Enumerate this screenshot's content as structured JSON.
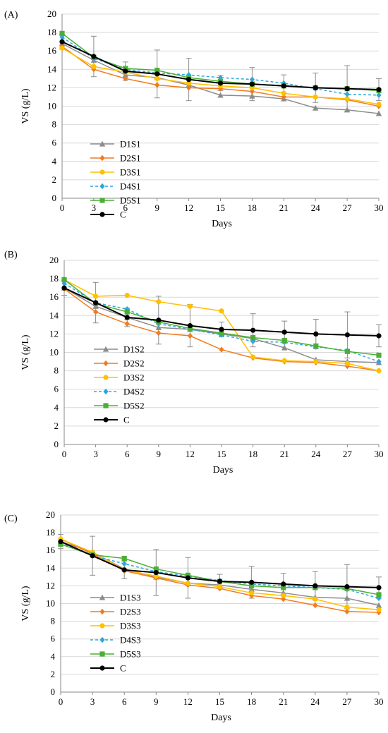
{
  "chart_data": [
    {
      "type": "line",
      "panel_label": "(A)",
      "xlabel": "Days",
      "ylabel": "VS  (g/L)",
      "x": [
        0,
        3,
        6,
        9,
        12,
        15,
        18,
        21,
        24,
        27,
        30
      ],
      "xlim": [
        0,
        30
      ],
      "ylim": [
        0,
        20
      ],
      "yticks": [
        0,
        2,
        4,
        6,
        8,
        10,
        12,
        14,
        16,
        18,
        20
      ],
      "legend_position": "lower-left",
      "series": [
        {
          "name": "D1S1",
          "color": "#8c8c8c",
          "marker": "triangle",
          "dash": "solid",
          "values": [
            16.8,
            15.0,
            13.4,
            13.1,
            12.3,
            11.2,
            11.1,
            10.8,
            9.8,
            9.6,
            9.2
          ]
        },
        {
          "name": "D2S1",
          "color": "#f07c22",
          "marker": "diamond",
          "dash": "solid",
          "values": [
            16.5,
            14.0,
            13.0,
            12.3,
            12.0,
            11.9,
            11.6,
            11.0,
            11.0,
            10.7,
            10.0
          ]
        },
        {
          "name": "D3S1",
          "color": "#ffc000",
          "marker": "circle",
          "dash": "solid",
          "values": [
            16.3,
            14.3,
            13.7,
            13.0,
            12.5,
            12.2,
            12.0,
            11.4,
            11.0,
            10.8,
            10.2
          ]
        },
        {
          "name": "D4S1",
          "color": "#2ea6e0",
          "marker": "diamond",
          "dash": "dashed",
          "values": [
            17.5,
            15.2,
            14.0,
            13.6,
            13.4,
            13.1,
            12.9,
            12.5,
            11.9,
            11.3,
            11.2
          ]
        },
        {
          "name": "D5S1",
          "color": "#4caf34",
          "marker": "square",
          "dash": "solid",
          "values": [
            17.9,
            15.3,
            14.1,
            13.9,
            13.1,
            12.7,
            12.4,
            12.2,
            12.0,
            11.9,
            11.7
          ]
        },
        {
          "name": "C",
          "color": "#000000",
          "marker": "circle",
          "dash": "solid",
          "values": [
            17.0,
            15.4,
            13.8,
            13.5,
            12.9,
            12.5,
            12.4,
            12.2,
            12.0,
            11.9,
            11.8
          ]
        }
      ],
      "error_bars": {
        "on": "C",
        "values": [
          0.8,
          2.2,
          1.0,
          2.6,
          2.3,
          0.8,
          1.8,
          1.2,
          1.6,
          2.5,
          1.2
        ]
      }
    },
    {
      "type": "line",
      "panel_label": "(B)",
      "xlabel": "Days",
      "ylabel": "VS  (g/L)",
      "x": [
        0,
        3,
        6,
        9,
        12,
        15,
        18,
        21,
        24,
        27,
        30
      ],
      "xlim": [
        0,
        30
      ],
      "ylim": [
        0,
        20
      ],
      "yticks": [
        0,
        2,
        4,
        6,
        8,
        10,
        12,
        14,
        16,
        18,
        20
      ],
      "legend_position": "lower-left",
      "series": [
        {
          "name": "D1S2",
          "color": "#8c8c8c",
          "marker": "triangle",
          "dash": "solid",
          "values": [
            17.0,
            15.0,
            13.8,
            12.7,
            12.5,
            12.0,
            11.5,
            10.5,
            9.2,
            9.0,
            8.9
          ]
        },
        {
          "name": "D2S2",
          "color": "#f07c22",
          "marker": "diamond",
          "dash": "solid",
          "values": [
            16.9,
            14.4,
            13.1,
            12.1,
            11.8,
            10.3,
            9.4,
            9.0,
            8.9,
            8.5,
            8.0
          ]
        },
        {
          "name": "D3S2",
          "color": "#ffc000",
          "marker": "circle",
          "dash": "solid",
          "values": [
            17.9,
            16.1,
            16.2,
            15.5,
            15.0,
            14.5,
            9.5,
            9.1,
            9.0,
            8.8,
            8.0
          ]
        },
        {
          "name": "D4S2",
          "color": "#2ea6e0",
          "marker": "diamond",
          "dash": "dashed",
          "values": [
            17.5,
            15.4,
            14.7,
            13.1,
            12.5,
            11.9,
            11.2,
            11.1,
            10.6,
            10.2,
            9.0
          ]
        },
        {
          "name": "D5S2",
          "color": "#4caf34",
          "marker": "square",
          "dash": "solid",
          "values": [
            17.9,
            15.3,
            14.4,
            13.3,
            12.6,
            12.1,
            11.6,
            11.3,
            10.7,
            10.1,
            9.7
          ]
        },
        {
          "name": "C",
          "color": "#000000",
          "marker": "circle",
          "dash": "solid",
          "values": [
            17.0,
            15.4,
            13.8,
            13.5,
            12.9,
            12.5,
            12.4,
            12.2,
            12.0,
            11.9,
            11.8
          ]
        }
      ],
      "error_bars": {
        "on": "C",
        "values": [
          0.8,
          2.2,
          1.0,
          2.6,
          2.3,
          0.8,
          1.8,
          1.2,
          1.6,
          2.5,
          1.2
        ]
      }
    },
    {
      "type": "line",
      "panel_label": "(C)",
      "xlabel": "Days",
      "ylabel": "VS  (g/L)",
      "x": [
        0,
        3,
        6,
        9,
        12,
        15,
        18,
        21,
        24,
        27,
        30
      ],
      "xlim": [
        0,
        30
      ],
      "ylim": [
        0,
        20
      ],
      "yticks": [
        0,
        2,
        4,
        6,
        8,
        10,
        12,
        14,
        16,
        18,
        20
      ],
      "legend_position": "lower-left",
      "series": [
        {
          "name": "D1S3",
          "color": "#8c8c8c",
          "marker": "triangle",
          "dash": "solid",
          "values": [
            17.0,
            15.8,
            13.9,
            13.0,
            12.3,
            12.1,
            11.6,
            11.2,
            10.7,
            10.6,
            9.8
          ]
        },
        {
          "name": "D2S3",
          "color": "#f07c22",
          "marker": "diamond",
          "dash": "solid",
          "values": [
            17.3,
            15.6,
            13.7,
            12.9,
            12.1,
            11.7,
            10.9,
            10.5,
            9.8,
            9.1,
            9.0
          ]
        },
        {
          "name": "D3S3",
          "color": "#ffc000",
          "marker": "circle",
          "dash": "solid",
          "values": [
            17.3,
            15.8,
            13.8,
            13.1,
            12.3,
            11.9,
            11.2,
            10.9,
            10.5,
            9.6,
            9.3
          ]
        },
        {
          "name": "D4S3",
          "color": "#2ea6e0",
          "marker": "diamond",
          "dash": "dashed",
          "values": [
            16.8,
            15.4,
            14.5,
            13.6,
            13.1,
            12.6,
            12.2,
            12.0,
            11.8,
            11.6,
            10.6
          ]
        },
        {
          "name": "D5S3",
          "color": "#4caf34",
          "marker": "square",
          "dash": "solid",
          "values": [
            16.7,
            15.5,
            15.1,
            13.9,
            13.2,
            12.5,
            12.0,
            11.8,
            11.8,
            11.7,
            11.0
          ]
        },
        {
          "name": "C",
          "color": "#000000",
          "marker": "circle",
          "dash": "solid",
          "values": [
            17.0,
            15.4,
            13.8,
            13.5,
            12.9,
            12.5,
            12.4,
            12.2,
            12.0,
            11.9,
            11.8
          ]
        }
      ],
      "error_bars": {
        "on": "C",
        "values": [
          0.8,
          2.2,
          1.0,
          2.6,
          2.3,
          0.8,
          1.8,
          1.2,
          1.6,
          2.5,
          1.2
        ]
      }
    }
  ]
}
